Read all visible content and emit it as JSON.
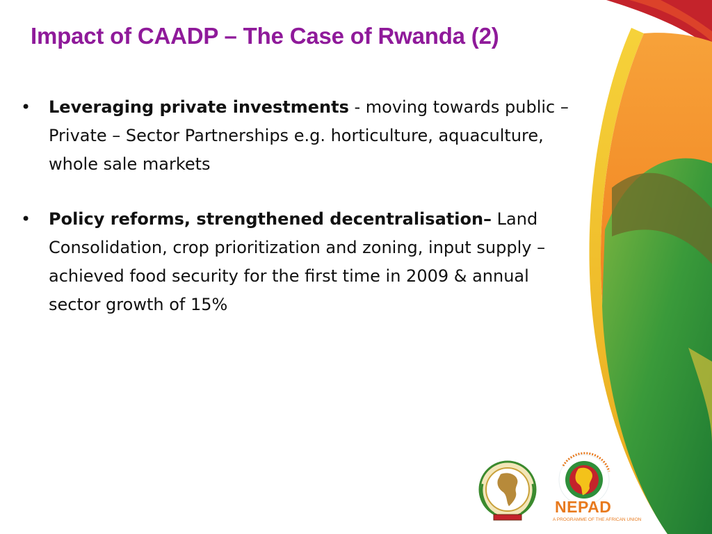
{
  "slide": {
    "title": "Impact of CAADP – The Case of Rwanda (2)",
    "bullets": [
      {
        "lead": "Leveraging private investments",
        "rest": " - moving towards public – Private – Sector Partnerships e.g. horticulture, aquaculture, whole sale markets"
      },
      {
        "lead": "Policy reforms, strengthened decentralisation–",
        "rest": " Land Consolidation, crop prioritization and zoning, input supply – achieved food security for the first time in 2009 & annual sector growth of 15%"
      }
    ]
  },
  "logos": {
    "nepad_name": "NEPAD",
    "nepad_subtitle": "A PROGRAMME OF THE AFRICAN UNION",
    "nepad_ring_text": "THE NEW PARTNERSHIP FOR AFRICA'S DEVELOPMENT"
  },
  "colors": {
    "title": "#8f1a9a",
    "accent_orange": "#f08a24",
    "accent_green": "#2e8f3a",
    "accent_red": "#c4232b",
    "accent_yellow": "#f4c21a"
  }
}
